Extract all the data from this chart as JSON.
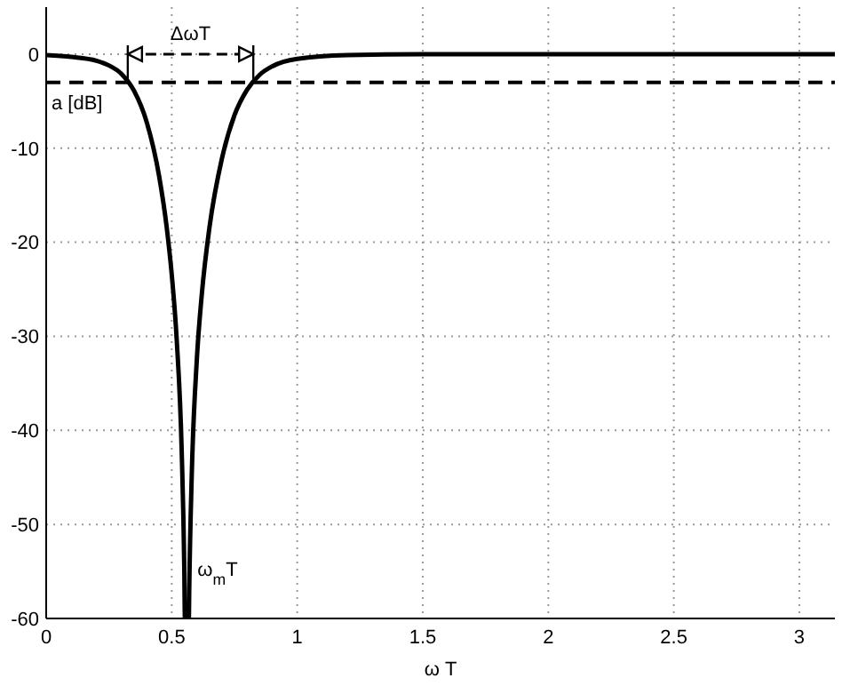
{
  "chart_data": {
    "type": "line",
    "xlabel": "ω T",
    "x": [
      0,
      0.1,
      0.2,
      0.25,
      0.3,
      0.35,
      0.4,
      0.45,
      0.48,
      0.5,
      0.52,
      0.54,
      0.55,
      0.5527,
      0.5682,
      0.57,
      0.58,
      0.6,
      0.62,
      0.65,
      0.7,
      0.75,
      0.8,
      0.85,
      0.9,
      1.0,
      1.2,
      1.5,
      2,
      2.5,
      3.1416
    ],
    "series": [
      {
        "color": "#000000",
        "values": [
          -0.1,
          -0.3,
          -0.7,
          -1.2,
          -2.1,
          -3.9,
          -7.2,
          -13.0,
          -18.4,
          -23.4,
          -30.4,
          -42.4,
          -54.5,
          -60,
          -60,
          -56.6,
          -44.6,
          -32.5,
          -25.5,
          -18.5,
          -11.1,
          -6.5,
          -3.8,
          -2.2,
          -1.3,
          -0.5,
          -0.1,
          0,
          0,
          0,
          0
        ]
      }
    ],
    "xlim": [
      0,
      3.1416
    ],
    "xticks": [
      0,
      0.5,
      1,
      1.5,
      2,
      2.5,
      3
    ],
    "ylim": [
      -60,
      5
    ],
    "yticks": [
      -60,
      -50,
      -40,
      -30,
      -20,
      -10,
      0
    ],
    "grid": true,
    "legend": false,
    "marker": "none",
    "line_style": "solid",
    "ref_lines": [
      {
        "axis": "y",
        "value": -3,
        "label": "a [dB]",
        "color": "#000000",
        "line_style": "dashed"
      }
    ],
    "annotations": [
      "ΔωT",
      {
        "text": "ω$_{m}$T",
        "x": 0.56,
        "y": -60
      }
    ]
  }
}
